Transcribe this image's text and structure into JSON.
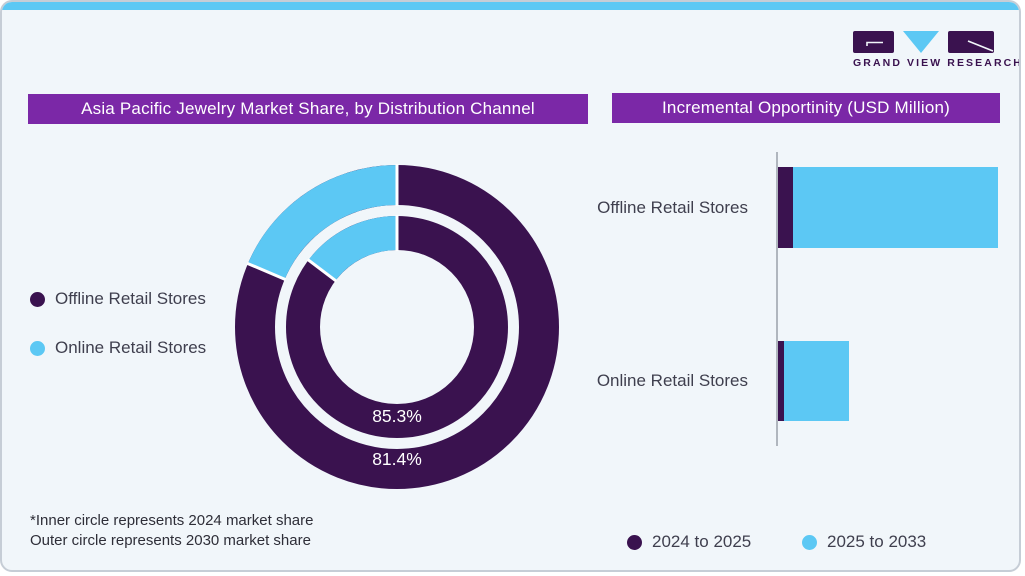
{
  "brand": {
    "name": "GRAND VIEW RESEARCH",
    "colors": {
      "dark_purple": "#3A124F",
      "light_blue": "#5CC8F4",
      "banner_purple": "#7B28A7",
      "background": "#F1F6FA"
    }
  },
  "left_panel": {
    "title": "Asia Pacific Jewelry Market Share, by Distribution Channel",
    "legend": [
      {
        "label": "Offline Retail Stores",
        "color": "#3A124F"
      },
      {
        "label": "Online Retail Stores",
        "color": "#5CC8F4"
      }
    ],
    "footnote_line1": "*Inner circle represents 2024 market share",
    "footnote_line2": "Outer circle represents 2030 market share"
  },
  "right_panel": {
    "title": "Incremental Opportinity (USD Million)",
    "legend": [
      {
        "label": "2024 to 2025",
        "color": "#3A124F"
      },
      {
        "label": "2025 to 2033",
        "color": "#5CC8F4"
      }
    ]
  },
  "chart_data": [
    {
      "type": "donut",
      "title": "Asia Pacific Jewelry Market Share, by Distribution Channel",
      "unit": "%",
      "start_angle": "top, clockwise",
      "rings": [
        {
          "ring": "inner",
          "represents": "2024 market share",
          "display_label": "85.3%",
          "values": [
            {
              "label": "Offline Retail Stores",
              "value": 85.3,
              "color": "#3A124F"
            },
            {
              "label": "Online Retail Stores",
              "value": 14.7,
              "color": "#5CC8F4"
            }
          ]
        },
        {
          "ring": "outer",
          "represents": "2030 market share",
          "display_label": "81.4%",
          "values": [
            {
              "label": "Offline Retail Stores",
              "value": 81.4,
              "color": "#3A124F"
            },
            {
              "label": "Online Retail Stores",
              "value": 18.6,
              "color": "#5CC8F4"
            }
          ]
        }
      ]
    },
    {
      "type": "bar",
      "title": "Incremental Opportinity (USD Million)",
      "orientation": "horizontal",
      "stacked": true,
      "axis_values_shown": false,
      "categories": [
        "Offline Retail Stores",
        "Online Retail Stores"
      ],
      "series": [
        {
          "name": "2024 to 2025",
          "color": "#3A124F",
          "values_relative": [
            15,
            6
          ]
        },
        {
          "name": "2025 to 2033",
          "color": "#5CC8F4",
          "values_relative": [
            205,
            65
          ]
        }
      ]
    }
  ]
}
